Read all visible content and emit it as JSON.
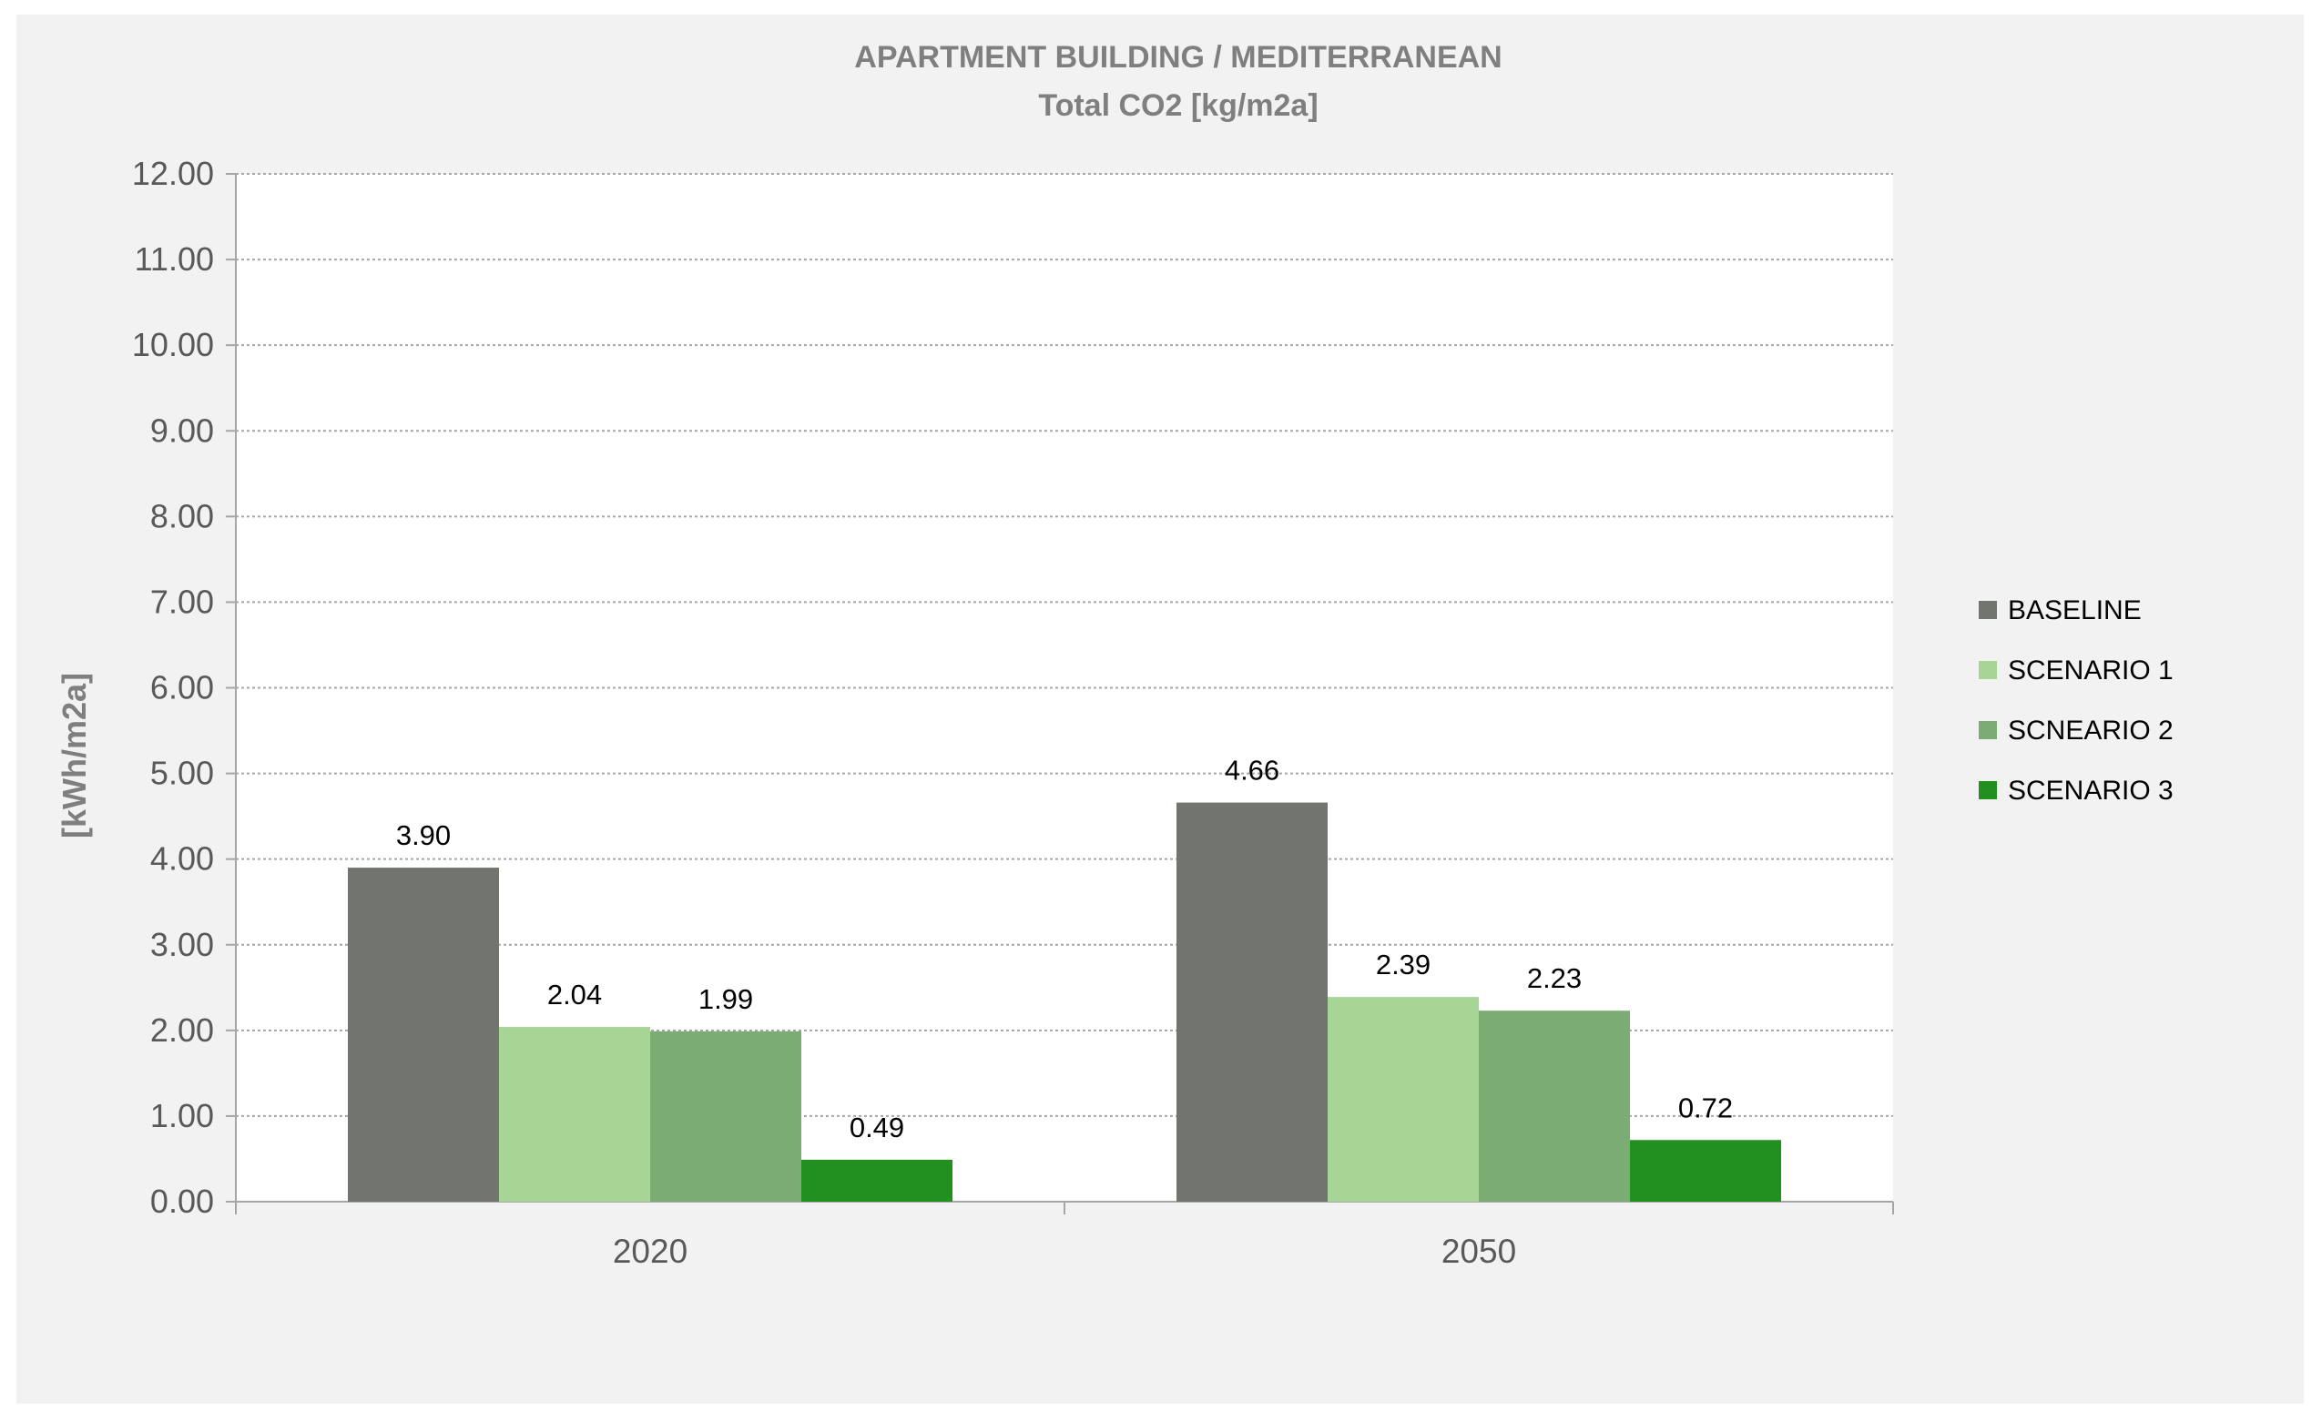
{
  "chart_data": {
    "type": "bar",
    "title": "APARTMENT BUILDING / MEDITERRANEAN",
    "subtitle": "Total CO2 [kg/m2a]",
    "xlabel": "",
    "ylabel": "[kWh/m2a]",
    "ylim": [
      0,
      12
    ],
    "yticks": [
      "0.00",
      "1.00",
      "2.00",
      "3.00",
      "4.00",
      "5.00",
      "6.00",
      "7.00",
      "8.00",
      "9.00",
      "10.00",
      "11.00",
      "12.00"
    ],
    "grid": true,
    "legend_position": "right",
    "categories": [
      "2020",
      "2050"
    ],
    "series": [
      {
        "name": "BASELINE",
        "color": "#72746e",
        "values": [
          3.9,
          4.66
        ],
        "labels": [
          "3.90",
          "4.66"
        ]
      },
      {
        "name": "SCENARIO 1",
        "color": "#a6d595",
        "values": [
          2.04,
          2.39
        ],
        "labels": [
          "2.04",
          "2.39"
        ]
      },
      {
        "name": "SCNEARIO 2",
        "color": "#7aac73",
        "values": [
          1.99,
          2.23
        ],
        "labels": [
          "1.99",
          "2.23"
        ]
      },
      {
        "name": "SCENARIO 3",
        "color": "#22901f",
        "values": [
          0.49,
          0.72
        ],
        "labels": [
          "0.49",
          "0.72"
        ]
      }
    ]
  }
}
